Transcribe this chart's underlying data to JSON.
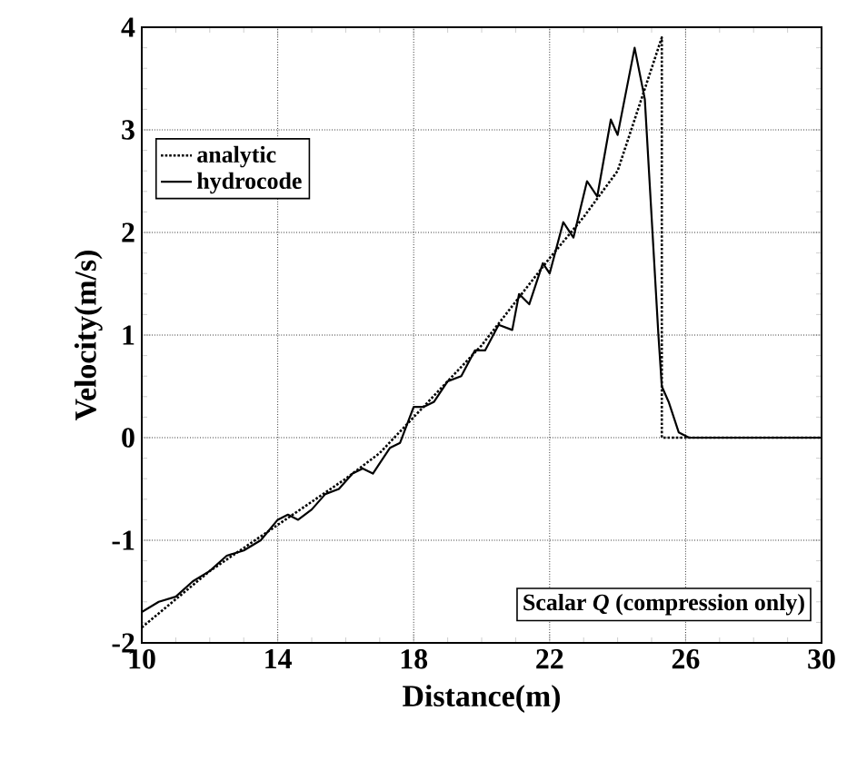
{
  "chart_data": {
    "type": "line",
    "xlabel": "Distance(m)",
    "ylabel": "Velocity(m/s)",
    "xlim": [
      10,
      30
    ],
    "xticks": [
      10,
      14,
      18,
      22,
      26,
      30
    ],
    "ylim": [
      -2,
      4
    ],
    "yticks": [
      -2,
      -1,
      0,
      1,
      2,
      3,
      4
    ],
    "grid": true,
    "legend": "top left",
    "marker": "none",
    "annotations": [
      "Scalar *Q* (compression only)"
    ],
    "series": [
      {
        "name": "analytic",
        "color": "#000000",
        "line_style": "dotted",
        "x": [
          10,
          12,
          14,
          16,
          17,
          18,
          20,
          22,
          23,
          24,
          25.3,
          25.3,
          30
        ],
        "values": [
          -1.85,
          -1.3,
          -0.85,
          -0.4,
          -0.15,
          0.2,
          0.9,
          1.75,
          2.15,
          2.6,
          3.9,
          0,
          0
        ]
      },
      {
        "name": "hydrocode",
        "color": "#000000",
        "line_style": "solid",
        "x": [
          10,
          10.5,
          11,
          11.5,
          12,
          12.5,
          13,
          13.5,
          14,
          14.3,
          14.6,
          15,
          15.4,
          15.8,
          16.2,
          16.5,
          16.8,
          17.3,
          17.6,
          18,
          18.3,
          18.6,
          19,
          19.4,
          19.8,
          20.1,
          20.5,
          20.9,
          21.1,
          21.4,
          21.8,
          22.0,
          22.4,
          22.7,
          23.1,
          23.4,
          23.8,
          24.0,
          24.5,
          24.8,
          25.2,
          25.3,
          25.5,
          25.8,
          26.1,
          30
        ],
        "values": [
          -1.7,
          -1.6,
          -1.55,
          -1.4,
          -1.3,
          -1.15,
          -1.1,
          -1.0,
          -0.8,
          -0.75,
          -0.8,
          -0.7,
          -0.55,
          -0.5,
          -0.35,
          -0.3,
          -0.35,
          -0.1,
          -0.05,
          0.3,
          0.3,
          0.35,
          0.55,
          0.6,
          0.85,
          0.85,
          1.1,
          1.05,
          1.4,
          1.3,
          1.7,
          1.6,
          2.1,
          1.95,
          2.5,
          2.35,
          3.1,
          2.95,
          3.8,
          3.3,
          1.0,
          0.5,
          0.35,
          0.05,
          0,
          0
        ]
      }
    ]
  }
}
